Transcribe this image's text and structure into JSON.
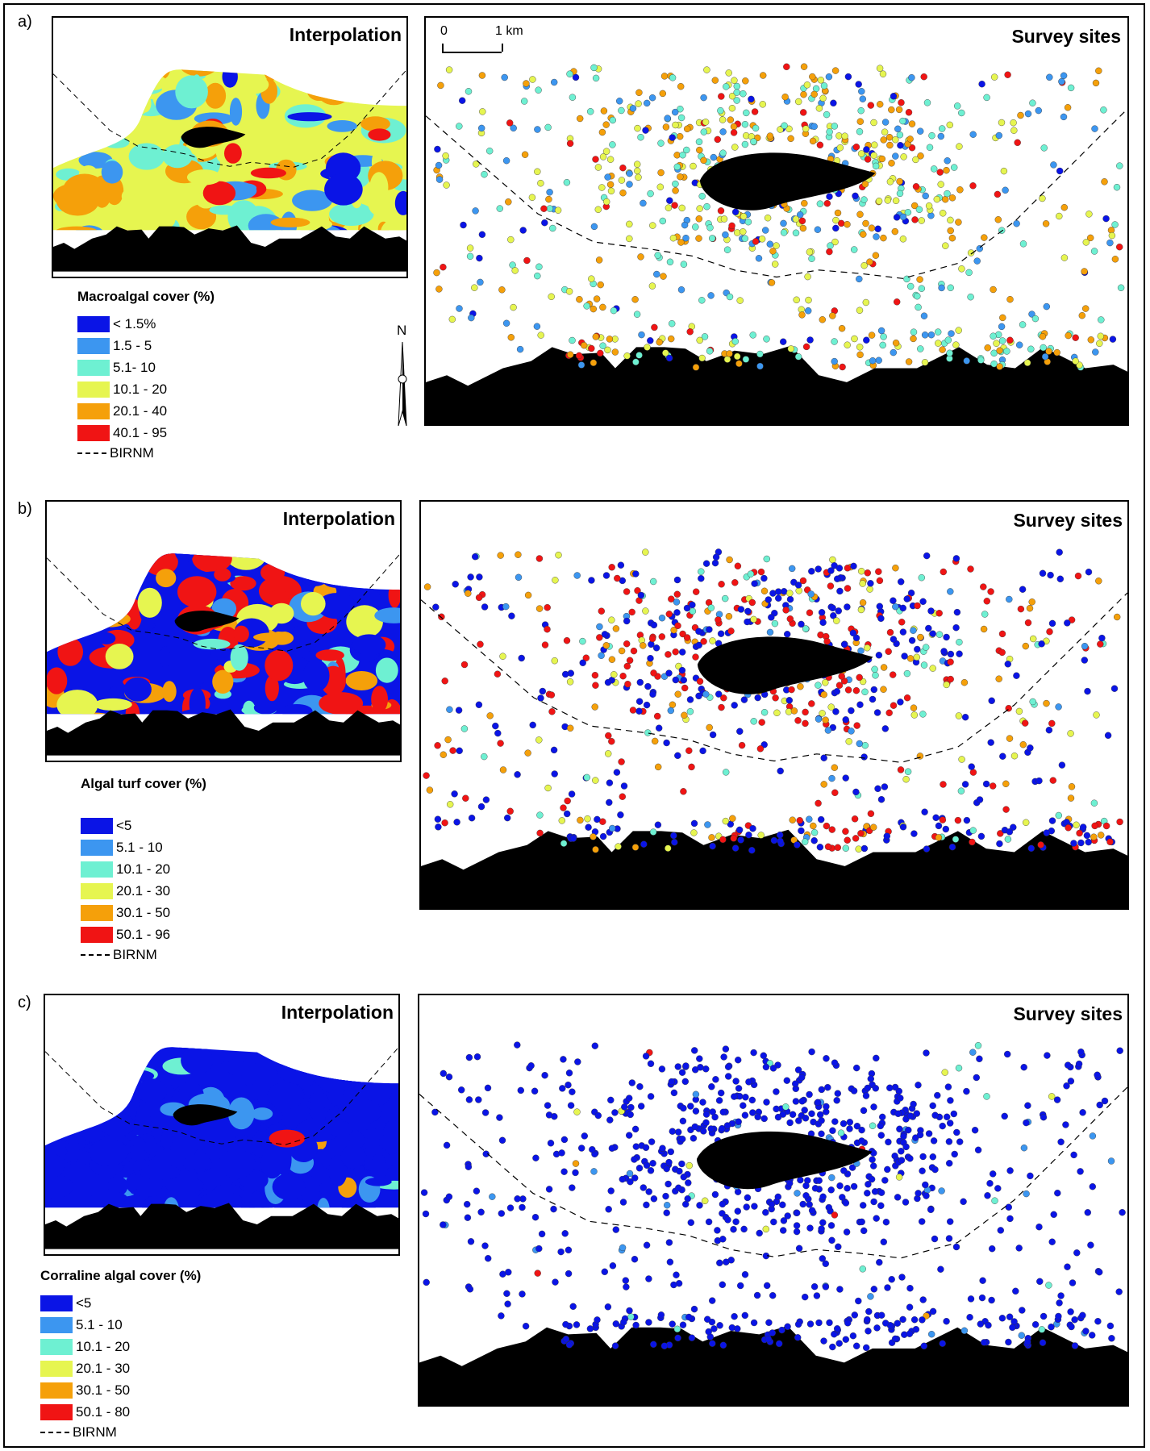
{
  "panels": [
    {
      "label": "a)",
      "interp_title": "Interpolation",
      "sites_title": "Survey sites",
      "legend_title": "Macroalgal cover (%)",
      "legend": [
        {
          "label": "< 1.5%",
          "color": "#0a14e6"
        },
        {
          "label": "1.5 - 5",
          "color": "#3c96f0"
        },
        {
          "label": "5.1- 10",
          "color": "#6ef0d2"
        },
        {
          "label": "10.1 - 20",
          "color": "#e6f550"
        },
        {
          "label": "20.1 - 40",
          "color": "#f5a00a"
        },
        {
          "label": "40.1 - 95",
          "color": "#f01414"
        }
      ],
      "boundary_label": "BIRNM",
      "weights": [
        0.06,
        0.14,
        0.24,
        0.26,
        0.22,
        0.08
      ]
    },
    {
      "label": "b)",
      "interp_title": "Interpolation",
      "sites_title": "Survey sites",
      "legend_title": "Algal turf cover (%)",
      "legend": [
        {
          "label": "<5",
          "color": "#0a14e6"
        },
        {
          "label": "5.1 - 10",
          "color": "#3c96f0"
        },
        {
          "label": "10.1 - 20",
          "color": "#6ef0d2"
        },
        {
          "label": "20.1 - 30",
          "color": "#e6f550"
        },
        {
          "label": "30.1 - 50",
          "color": "#f5a00a"
        },
        {
          "label": "50.1 - 96",
          "color": "#f01414"
        }
      ],
      "boundary_label": "BIRNM",
      "weights": [
        0.36,
        0.05,
        0.09,
        0.08,
        0.1,
        0.32
      ]
    },
    {
      "label": "c)",
      "interp_title": "Interpolation",
      "sites_title": "Survey sites",
      "legend_title": "Corraline algal cover (%)",
      "legend": [
        {
          "label": "<5",
          "color": "#0a14e6"
        },
        {
          "label": "5.1 - 10",
          "color": "#3c96f0"
        },
        {
          "label": "10.1 - 20",
          "color": "#6ef0d2"
        },
        {
          "label": "20.1 - 30",
          "color": "#e6f550"
        },
        {
          "label": "30.1 - 50",
          "color": "#f5a00a"
        },
        {
          "label": "50.1 - 80",
          "color": "#f01414"
        }
      ],
      "boundary_label": "BIRNM",
      "weights": [
        0.9,
        0.05,
        0.02,
        0.01,
        0.012,
        0.008
      ]
    }
  ],
  "scale": {
    "start": "0",
    "end": "1 km"
  },
  "north_label": "N"
}
